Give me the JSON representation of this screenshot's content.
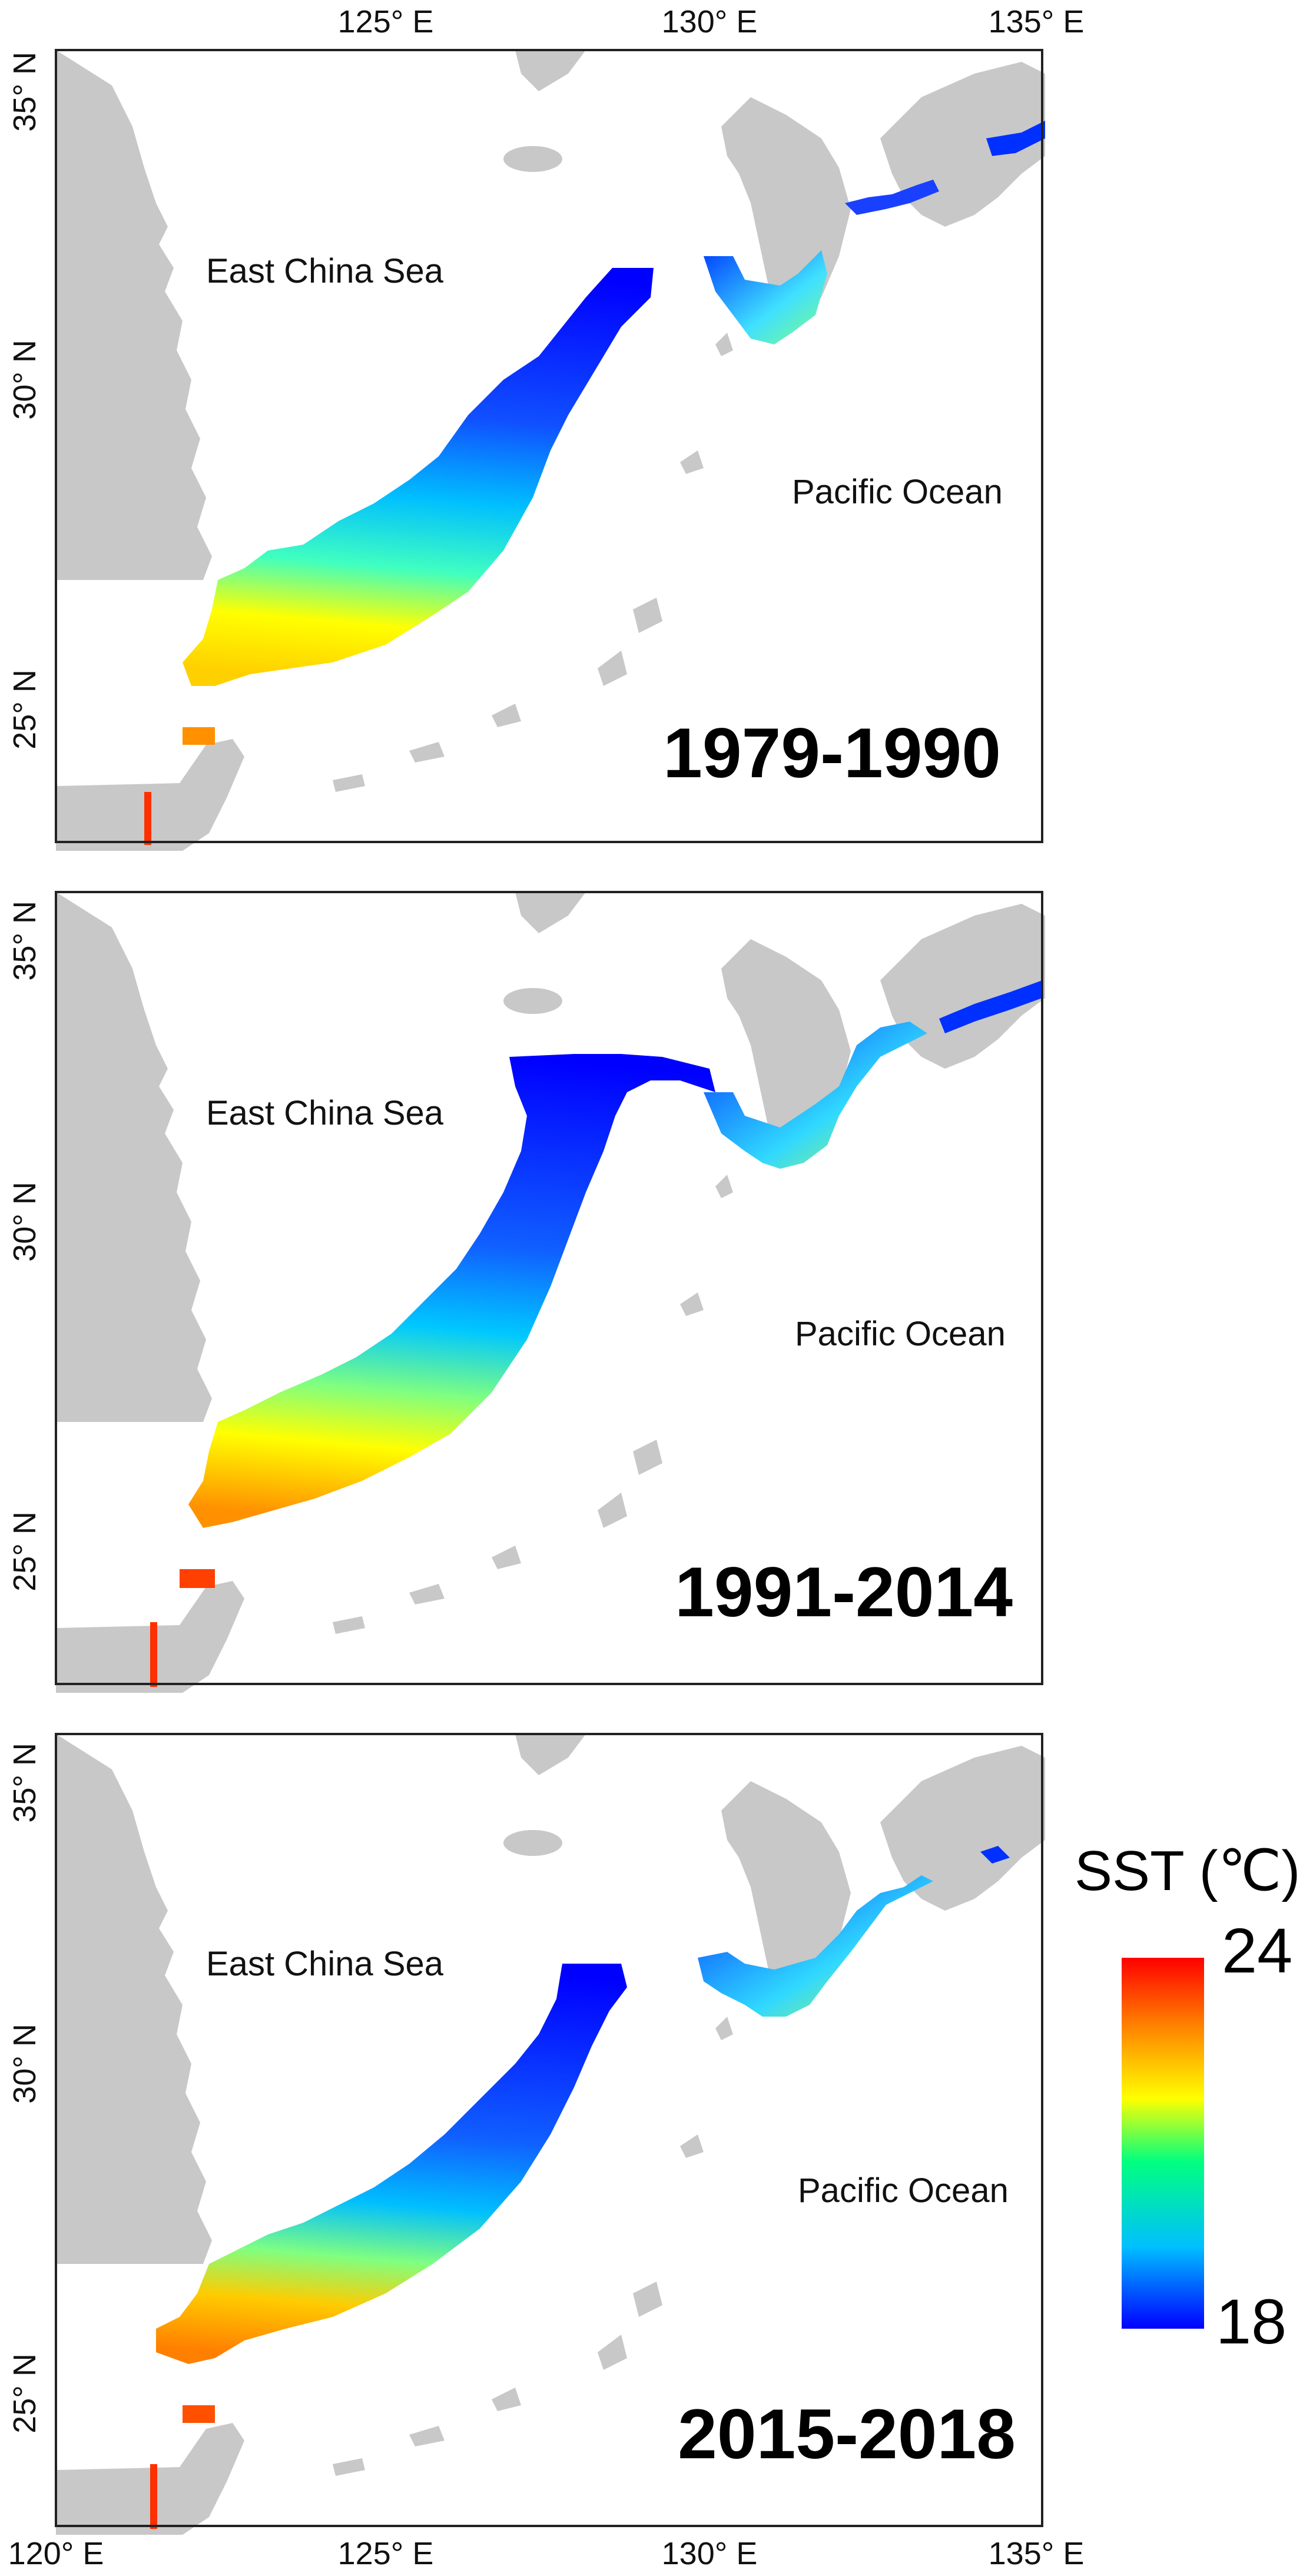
{
  "axes": {
    "lon_ticks": [
      "125° E",
      "130° E",
      "135° E"
    ],
    "lon_ticks_bottom": [
      "120° E",
      "125° E",
      "130° E",
      "135° E"
    ],
    "lat_ticks": [
      "35° N",
      "30° N",
      "25° N"
    ]
  },
  "panels": [
    {
      "period": "1979-1990",
      "labels": {
        "sea": "East China Sea",
        "ocean": "Pacific Ocean"
      },
      "sst_profile": {
        "north_color_c": 18.2,
        "south_color_c": 22.5,
        "taiwan_patch_c": 23.2
      }
    },
    {
      "period": "1991-2014",
      "labels": {
        "sea": "East China Sea",
        "ocean": "Pacific Ocean"
      },
      "sst_profile": {
        "north_color_c": 18.3,
        "south_color_c": 23.0,
        "taiwan_patch_c": 23.8
      }
    },
    {
      "period": "2015-2018",
      "labels": {
        "sea": "East China Sea",
        "ocean": "Pacific Ocean"
      },
      "sst_profile": {
        "north_color_c": 18.2,
        "south_color_c": 23.2,
        "taiwan_patch_c": 23.8
      }
    }
  ],
  "legend": {
    "title": "SST (℃)",
    "max_label": "24",
    "min_label": "18",
    "range": [
      18,
      24
    ],
    "colormap": [
      "#0000ff",
      "#00bfff",
      "#00ff80",
      "#ffff00",
      "#ff8000",
      "#ff0000"
    ]
  },
  "colors": {
    "land": "#c8c8c8",
    "background": "#ffffff"
  }
}
